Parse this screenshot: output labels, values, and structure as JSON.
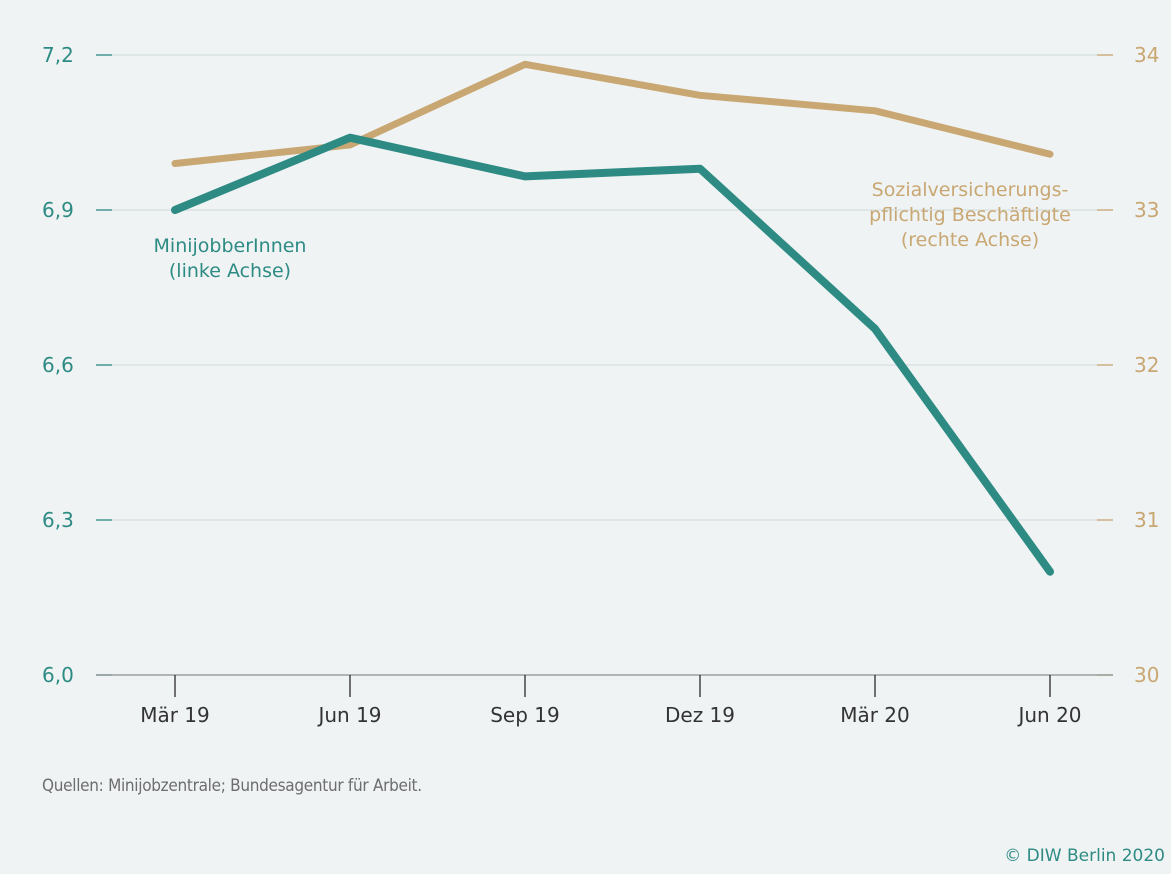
{
  "chart_data": {
    "type": "line",
    "categories": [
      "Mär 19",
      "Jun 19",
      "Sep 19",
      "Dez 19",
      "Mär 20",
      "Jun 20"
    ],
    "series": [
      {
        "name": "MinijobberInnen\n(linke Achse)",
        "axis": "left",
        "color": "#2e8b84",
        "values": [
          6.9,
          7.04,
          6.965,
          6.98,
          6.67,
          6.2
        ]
      },
      {
        "name": "Sozialversicherungs-\npflichtig Beschäftigte\n(rechte Achse)",
        "axis": "right",
        "color": "#c9a772",
        "values": [
          33.3,
          33.42,
          33.94,
          33.74,
          33.64,
          33.36
        ]
      }
    ],
    "y_left": {
      "ylim": [
        6.0,
        7.2
      ],
      "ticks": [
        "6,0",
        "6,3",
        "6,6",
        "6,9",
        "7,2"
      ],
      "tick_values": [
        6.0,
        6.3,
        6.6,
        6.9,
        7.2
      ]
    },
    "y_right": {
      "ylim": [
        30,
        34
      ],
      "ticks": [
        "30",
        "31",
        "32",
        "33",
        "34"
      ],
      "tick_values": [
        30,
        31,
        32,
        33,
        34
      ]
    },
    "grid": true
  },
  "source": "Quellen: Minijobzentrale; Bundesagentur für Arbeit.",
  "copyright": "© DIW Berlin 2020"
}
